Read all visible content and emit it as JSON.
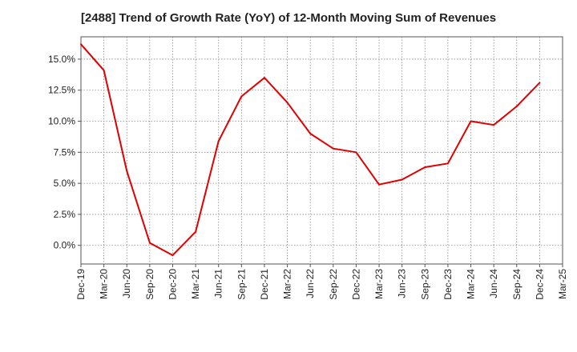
{
  "chart_data": {
    "type": "line",
    "title": "[2488]  Trend of Growth Rate (YoY) of 12-Month Moving Sum of Revenues",
    "xlabel": "",
    "ylabel": "",
    "categories": [
      "Dec-19",
      "Mar-20",
      "Jun-20",
      "Sep-20",
      "Dec-20",
      "Mar-21",
      "Jun-21",
      "Sep-21",
      "Dec-21",
      "Mar-22",
      "Jun-22",
      "Sep-22",
      "Dec-22",
      "Mar-23",
      "Jun-23",
      "Sep-23",
      "Dec-23",
      "Mar-24",
      "Jun-24",
      "Sep-24",
      "Dec-24",
      "Mar-25"
    ],
    "series": [
      {
        "color": "#e00000",
        "values": [
          16.2,
          14.1,
          6.0,
          0.2,
          -0.8,
          1.1,
          8.4,
          12.0,
          13.5,
          11.5,
          9.0,
          7.8,
          7.5,
          4.9,
          5.3,
          6.3,
          6.6,
          10.0,
          9.7,
          11.2,
          13.1,
          null
        ]
      }
    ],
    "ylim": [
      -1.5,
      16.8
    ],
    "yticks": [
      0,
      2.5,
      5.0,
      7.5,
      10.0,
      12.5,
      15.0
    ],
    "ytick_labels": [
      "0.0%",
      "2.5%",
      "5.0%",
      "7.5%",
      "10.0%",
      "12.5%",
      "15.0%"
    ],
    "grid": true,
    "grid_style": "dotted"
  }
}
